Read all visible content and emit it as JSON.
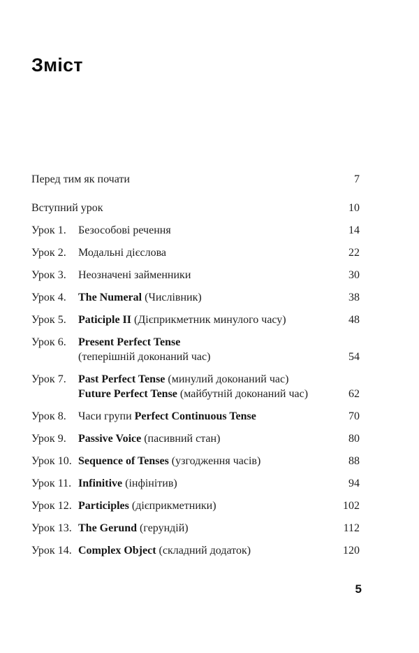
{
  "page": {
    "title": "Зміст",
    "footer_page_number": "5",
    "background_color": "#ffffff",
    "text_color": "#1e1e1e"
  },
  "toc": {
    "entries": [
      {
        "label": "",
        "page": "7",
        "gap_after": true,
        "lines": [
          [
            {
              "t": "Перед тим як почати",
              "b": false
            }
          ]
        ]
      },
      {
        "label": "",
        "page": "10",
        "lines": [
          [
            {
              "t": "Вступний урок",
              "b": false
            }
          ]
        ]
      },
      {
        "label": "Урок 1.",
        "page": "14",
        "lines": [
          [
            {
              "t": "Безособові речення",
              "b": false
            }
          ]
        ]
      },
      {
        "label": "Урок 2.",
        "page": "22",
        "lines": [
          [
            {
              "t": "Модальні дієслова",
              "b": false
            }
          ]
        ]
      },
      {
        "label": "Урок 3.",
        "page": "30",
        "lines": [
          [
            {
              "t": "Неозначені займенники",
              "b": false
            }
          ]
        ]
      },
      {
        "label": "Урок 4.",
        "page": "38",
        "lines": [
          [
            {
              "t": "The Numeral",
              "b": true
            },
            {
              "t": " (Числівник)",
              "b": false
            }
          ]
        ]
      },
      {
        "label": "Урок 5.",
        "page": "48",
        "lines": [
          [
            {
              "t": "Paticiple II",
              "b": true
            },
            {
              "t": " (Дієприкметник минулого часу)",
              "b": false
            }
          ]
        ]
      },
      {
        "label": "Урок 6.",
        "page": "54",
        "lines": [
          [
            {
              "t": "Present Perfect Tense",
              "b": true
            }
          ],
          [
            {
              "t": "(теперішній доконаний час)",
              "b": false
            }
          ]
        ]
      },
      {
        "label": "Урок 7.",
        "page": "62",
        "lines": [
          [
            {
              "t": "Past Perfect Tense",
              "b": true
            },
            {
              "t": " (минулий доконаний час)",
              "b": false
            }
          ],
          [
            {
              "t": "Future Perfect Tense",
              "b": true
            },
            {
              "t": " (майбутній доконаний час)",
              "b": false
            }
          ]
        ]
      },
      {
        "label": "Урок 8.",
        "page": "70",
        "lines": [
          [
            {
              "t": "Часи групи ",
              "b": false
            },
            {
              "t": "Perfect Continuous Tense",
              "b": true
            }
          ]
        ]
      },
      {
        "label": "Урок 9.",
        "page": "80",
        "lines": [
          [
            {
              "t": "Passive Voice",
              "b": true
            },
            {
              "t": " (пасивний стан)",
              "b": false
            }
          ]
        ]
      },
      {
        "label": "Урок 10.",
        "page": "88",
        "lines": [
          [
            {
              "t": "Sequence of Tenses",
              "b": true
            },
            {
              "t": " (узгодження часів)",
              "b": false
            }
          ]
        ]
      },
      {
        "label": "Урок 11.",
        "page": "94",
        "lines": [
          [
            {
              "t": "Infinitive",
              "b": true
            },
            {
              "t": " (інфінітив)",
              "b": false
            }
          ]
        ]
      },
      {
        "label": "Урок 12.",
        "page": "102",
        "lines": [
          [
            {
              "t": "Participles",
              "b": true
            },
            {
              "t": " (дієприкметники)",
              "b": false
            }
          ]
        ]
      },
      {
        "label": "Урок 13.",
        "page": "112",
        "lines": [
          [
            {
              "t": "The Gerund",
              "b": true
            },
            {
              "t": " (герундій)",
              "b": false
            }
          ]
        ]
      },
      {
        "label": "Урок 14.",
        "page": "120",
        "lines": [
          [
            {
              "t": "Complex Object",
              "b": true
            },
            {
              "t": " (складний додаток)",
              "b": false
            }
          ]
        ]
      }
    ]
  }
}
